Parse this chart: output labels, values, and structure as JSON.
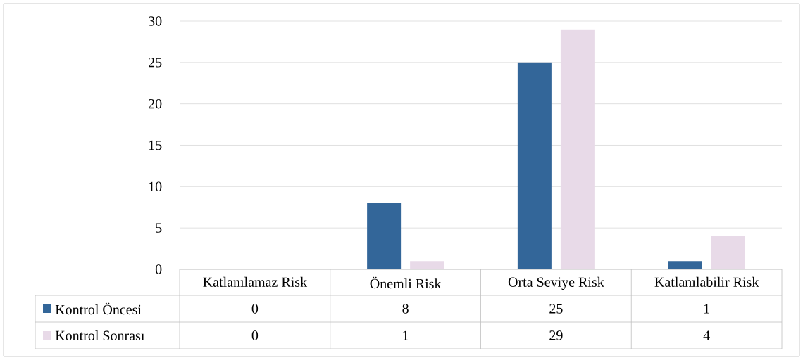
{
  "chart_data": {
    "type": "bar",
    "categories": [
      "Katlanılamaz Risk",
      "Önemli Risk",
      "Orta Seviye Risk",
      "Katlanılabilir Risk"
    ],
    "series": [
      {
        "name": "Kontrol Öncesi",
        "color": "#336699",
        "values": [
          0,
          8,
          25,
          1
        ]
      },
      {
        "name": "Kontrol Sonrası",
        "color": "#e8dae8",
        "values": [
          0,
          1,
          29,
          4
        ]
      }
    ],
    "ylim": [
      0,
      30
    ],
    "yticks": [
      0,
      5,
      10,
      15,
      20,
      25,
      30
    ],
    "grid": "y",
    "legend": "bottom",
    "data_labels": true
  }
}
